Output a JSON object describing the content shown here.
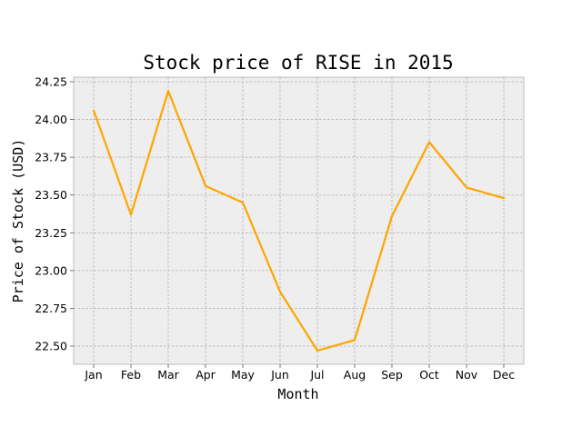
{
  "chart_data": {
    "type": "line",
    "title": "Stock price of RISE in 2015",
    "xlabel": "Month",
    "ylabel": "Price of Stock (USD)",
    "categories": [
      "Jan",
      "Feb",
      "Mar",
      "Apr",
      "May",
      "Jun",
      "Jul",
      "Aug",
      "Sep",
      "Oct",
      "Nov",
      "Dec"
    ],
    "series": [
      {
        "values": [
          24.06,
          23.37,
          24.19,
          23.56,
          23.45,
          22.86,
          22.47,
          22.54,
          23.36,
          23.85,
          23.55,
          23.48
        ],
        "color": "#ffa500"
      }
    ],
    "ylim": [
      22.38,
      24.28
    ],
    "yticks": [
      "22.50",
      "22.75",
      "23.00",
      "23.25",
      "23.50",
      "23.75",
      "24.00",
      "24.25"
    ],
    "grid": true,
    "background_color": "#eeeeee"
  }
}
